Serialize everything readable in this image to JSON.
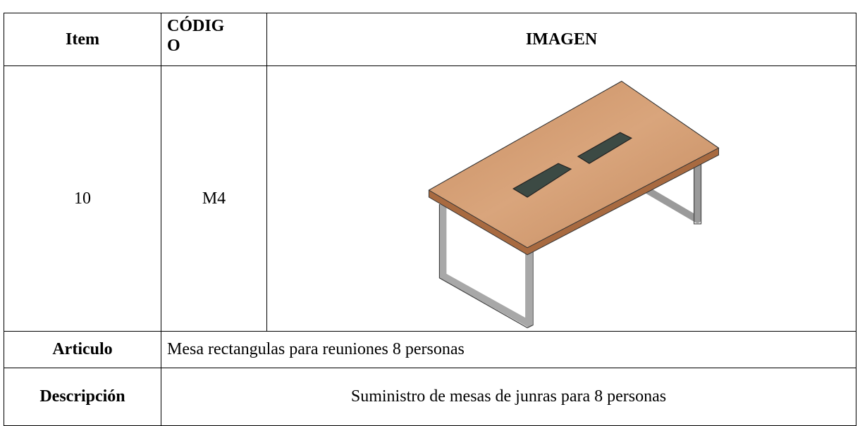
{
  "header": [
    "Item",
    "CÓDIGO",
    "IMAGEN"
  ],
  "row": {
    "item": "10",
    "code": "M4"
  },
  "article": {
    "label": "Articulo",
    "value": "Mesa rectangulas para reuniones 8 personas"
  },
  "description": {
    "label": "Descripción",
    "value": "Suministro de mesas de junras para 8 personas"
  }
}
